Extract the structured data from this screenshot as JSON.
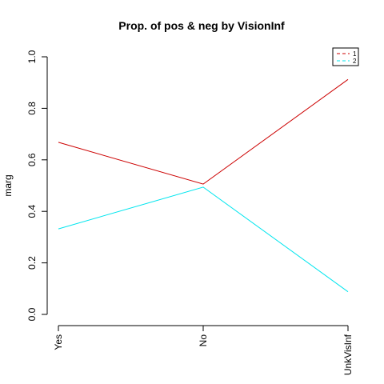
{
  "chart_data": {
    "type": "line",
    "title": "Prop. of pos & neg by VisionInf",
    "xlabel": "",
    "ylabel": "marg",
    "categories": [
      "Yes",
      "No",
      "UnkVisInf"
    ],
    "ylim": [
      0,
      1
    ],
    "yticks": [
      "0.0",
      "0.2",
      "0.4",
      "0.6",
      "0.8",
      "1.0"
    ],
    "grid": false,
    "legend_position": "top-right",
    "series": [
      {
        "name": "1",
        "color": "#cc0000",
        "values": [
          0.668,
          0.506,
          0.912
        ]
      },
      {
        "name": "2",
        "color": "#00e5ee",
        "values": [
          0.332,
          0.494,
          0.088
        ]
      }
    ]
  }
}
